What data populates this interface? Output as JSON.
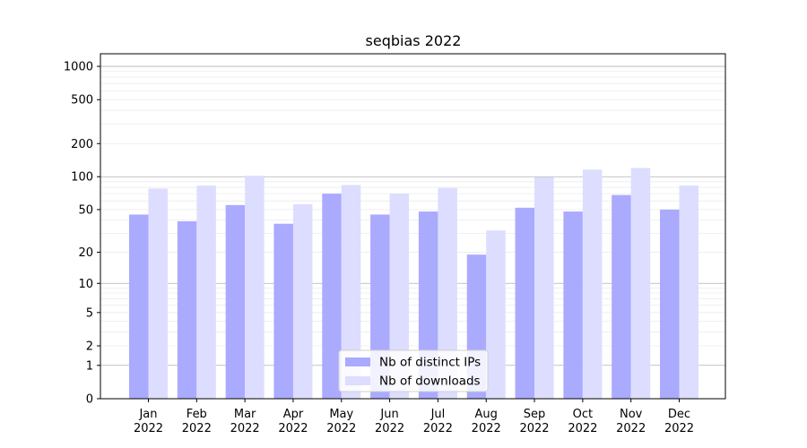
{
  "chart_data": {
    "type": "bar",
    "title": "seqbias 2022",
    "xlabel": "",
    "ylabel": "",
    "y_scale": "log1p",
    "ylim": [
      0,
      1300
    ],
    "y_ticks": [
      0,
      1,
      2,
      5,
      10,
      20,
      50,
      100,
      200,
      500,
      1000
    ],
    "y_tick_labels": [
      "0",
      "1",
      "2",
      "5",
      "10",
      "20",
      "50",
      "100",
      "200",
      "500",
      "1000"
    ],
    "categories": [
      "Jan\n2022",
      "Feb\n2022",
      "Mar\n2022",
      "Apr\n2022",
      "May\n2022",
      "Jun\n2022",
      "Jul\n2022",
      "Aug\n2022",
      "Sep\n2022",
      "Oct\n2022",
      "Nov\n2022",
      "Dec\n2022"
    ],
    "series": [
      {
        "name": "Nb of distinct IPs",
        "color": "#aaaaff",
        "values": [
          45,
          39,
          55,
          37,
          70,
          45,
          48,
          19,
          52,
          48,
          68,
          50
        ]
      },
      {
        "name": "Nb of downloads",
        "color": "#ddddff",
        "values": [
          78,
          83,
          102,
          56,
          84,
          70,
          79,
          32,
          99,
          116,
          120,
          83
        ]
      }
    ],
    "grid": true,
    "legend_position": "lower center"
  }
}
